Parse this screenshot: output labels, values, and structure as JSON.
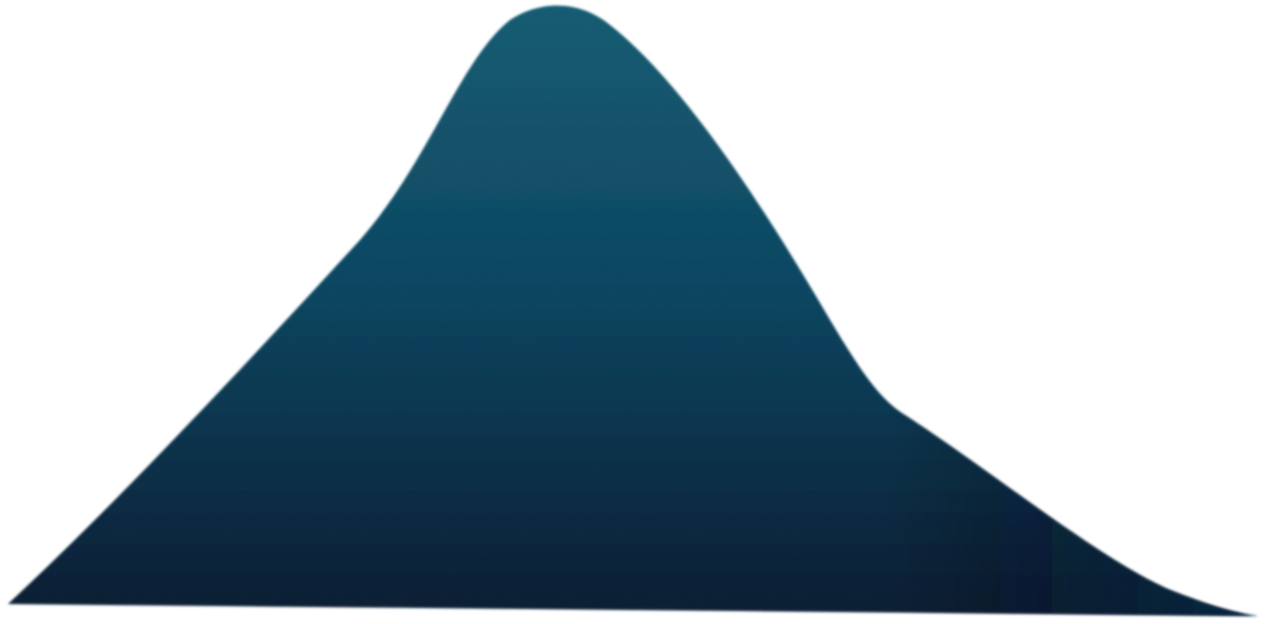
{
  "graphic": {
    "shape": "smooth-peak-silhouette",
    "colors": {
      "background": "#ffffff",
      "fill_top": "#176178",
      "fill_mid": "#0f4b67",
      "fill_bottom": "#071f36",
      "fill_bottom_right": "#0a3152"
    },
    "texture": "fine-noise"
  }
}
